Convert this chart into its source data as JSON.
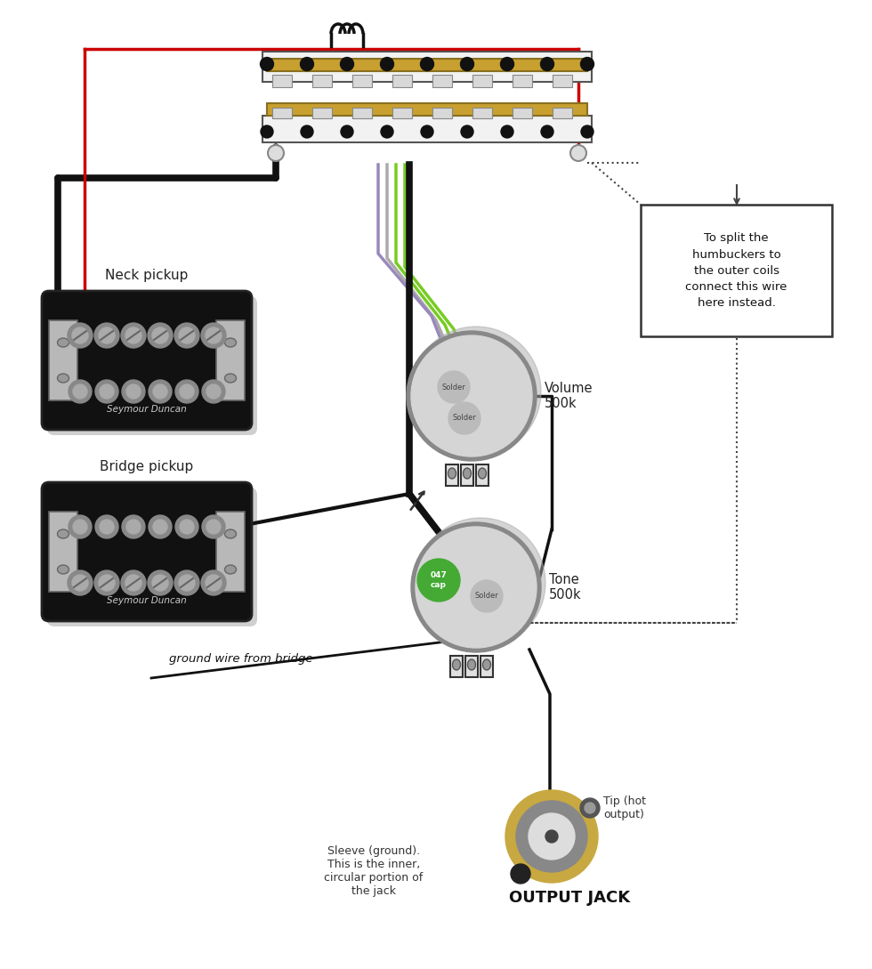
{
  "bg_color": "#ffffff",
  "neck_pickup_label": "Neck pickup",
  "bridge_pickup_label": "Bridge pickup",
  "volume_label": "Volume\n500k",
  "tone_label": "Tone\n500k",
  "solder_label": "Solder",
  "cap_label": "047\ncap",
  "output_jack_label": "OUTPUT JACK",
  "tip_label": "Tip (hot\noutput)",
  "sleeve_label": "Sleeve (ground).\nThis is the inner,\ncircular portion of\nthe jack",
  "ground_label": "ground wire from bridge",
  "note_box_text": "To split the\nhumbuckers to\nthe outer coils\nconnect this wire\nhere instead.",
  "seymour_duncan": "Seymour Duncan",
  "wire_black": "#111111",
  "wire_red": "#cc0000",
  "wire_green": "#77cc22",
  "wire_gray": "#aaaaaa",
  "wire_purple": "#9988bb",
  "pickup_body_color": "#111111",
  "pickup_side_color": "#aaaaaa",
  "pot_body_color": "#d5d5d5",
  "pot_solder_color": "#bbbbbb",
  "pot_shadow_color": "#888888",
  "cap_color": "#44aa33",
  "jack_outer_color": "#c8a840",
  "jack_mid_color": "#888888",
  "jack_inner_color": "#dddddd",
  "switch_bar_color": "#c8a030",
  "switch_body_color": "#f2f2f2",
  "switch_contact_color": "#111111",
  "note_box_bg": "#ffffff",
  "note_box_border": "#333333"
}
